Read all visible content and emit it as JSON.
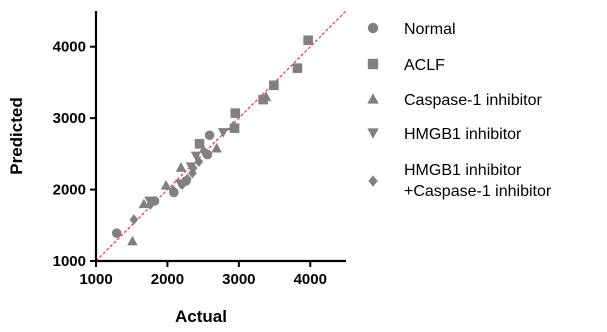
{
  "chart_data": {
    "type": "scatter",
    "title": "",
    "xlabel": "Actual",
    "ylabel": "Predicted",
    "xlim": [
      1000,
      4500
    ],
    "ylim": [
      1000,
      4500
    ],
    "xticks": [
      1000,
      2000,
      3000,
      4000
    ],
    "yticks": [
      1000,
      2000,
      3000,
      4000
    ],
    "grid": false,
    "legend_position": "right",
    "reference_line": {
      "style": "dashed",
      "color": "#e53935",
      "from": [
        1000,
        1000
      ],
      "to": [
        4500,
        4500
      ]
    },
    "marker_color": "#808080",
    "series": [
      {
        "name": "Normal",
        "marker": "circle",
        "points": [
          [
            1290,
            1390
          ],
          [
            1820,
            1840
          ],
          [
            2090,
            1960
          ],
          [
            2260,
            2120
          ],
          [
            2560,
            2490
          ],
          [
            2590,
            2760
          ]
        ]
      },
      {
        "name": "ACLF",
        "marker": "square",
        "points": [
          [
            2450,
            2640
          ],
          [
            2940,
            2860
          ],
          [
            2950,
            3070
          ],
          [
            3340,
            3260
          ],
          [
            3490,
            3460
          ],
          [
            3820,
            3700
          ],
          [
            3970,
            4090
          ]
        ]
      },
      {
        "name": "Caspase-1 inhibitor",
        "marker": "triangle-up",
        "points": [
          [
            1510,
            1280
          ],
          [
            1670,
            1800
          ],
          [
            1980,
            2060
          ],
          [
            2190,
            2310
          ],
          [
            2690,
            2580
          ],
          [
            2920,
            2890
          ],
          [
            3380,
            3300
          ]
        ]
      },
      {
        "name": "HMGB1 inhibitor",
        "marker": "triangle-down",
        "points": [
          [
            1750,
            1840
          ],
          [
            2180,
            2080
          ],
          [
            2330,
            2320
          ],
          [
            2400,
            2470
          ],
          [
            2780,
            2800
          ]
        ]
      },
      {
        "name": "HMGB1 inhibitor\n+Caspase-1 inhibitor",
        "marker": "diamond",
        "legend_lines": [
          "HMGB1 inhibitor",
          "+Caspase-1 inhibitor"
        ],
        "points": [
          [
            1530,
            1580
          ],
          [
            1760,
            1790
          ],
          [
            2080,
            1990
          ],
          [
            2210,
            2070
          ],
          [
            2280,
            2150
          ],
          [
            2350,
            2230
          ],
          [
            2360,
            2300
          ],
          [
            2440,
            2390
          ],
          [
            2510,
            2540
          ]
        ]
      }
    ]
  }
}
